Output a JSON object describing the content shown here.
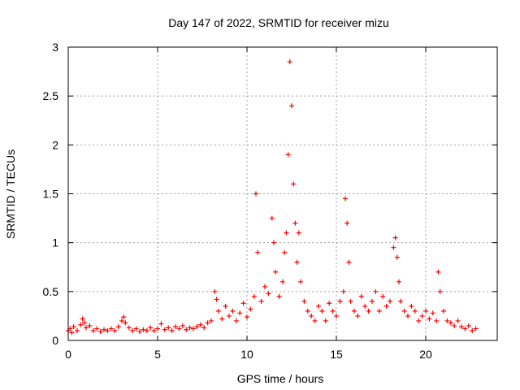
{
  "chart_data": {
    "type": "scatter",
    "title": "Day 147 of 2022, SRMTID for receiver mizu",
    "xlabel": "GPS time / hours",
    "ylabel": "SRMTID / TECUs",
    "xlim": [
      0,
      24
    ],
    "ylim": [
      0,
      3
    ],
    "grid": true,
    "marker": "+",
    "color": "#ff0000",
    "xticks": [
      0,
      5,
      10,
      15,
      20
    ],
    "yticks": [
      0,
      0.5,
      1,
      1.5,
      2,
      2.5,
      3
    ],
    "xtick_labels": [
      "0",
      "5",
      "10",
      "15",
      "20"
    ],
    "ytick_labels": [
      "0",
      "0.5",
      "1",
      "1.5",
      "2",
      "2.5",
      "3"
    ],
    "series": [
      {
        "name": "SRMTID",
        "x": [
          0.0,
          0.1,
          0.2,
          0.3,
          0.5,
          0.7,
          0.8,
          0.9,
          1.0,
          1.2,
          1.4,
          1.6,
          1.8,
          2.0,
          2.2,
          2.4,
          2.6,
          2.8,
          3.0,
          3.1,
          3.2,
          3.4,
          3.6,
          3.8,
          4.0,
          4.2,
          4.4,
          4.6,
          4.8,
          5.0,
          5.2,
          5.4,
          5.6,
          5.8,
          6.0,
          6.2,
          6.4,
          6.6,
          6.8,
          7.0,
          7.2,
          7.4,
          7.6,
          7.8,
          8.0,
          8.2,
          8.3,
          8.4,
          8.6,
          8.8,
          9.0,
          9.2,
          9.4,
          9.6,
          9.8,
          10.0,
          10.2,
          10.4,
          10.5,
          10.6,
          10.8,
          11.0,
          11.2,
          11.4,
          11.5,
          11.6,
          11.8,
          12.0,
          12.1,
          12.2,
          12.3,
          12.4,
          12.5,
          12.6,
          12.7,
          12.8,
          12.9,
          13.0,
          13.2,
          13.4,
          13.6,
          13.8,
          14.0,
          14.2,
          14.4,
          14.6,
          14.8,
          15.0,
          15.2,
          15.4,
          15.5,
          15.6,
          15.7,
          15.8,
          16.0,
          16.2,
          16.4,
          16.6,
          16.8,
          17.0,
          17.2,
          17.4,
          17.6,
          17.8,
          18.0,
          18.2,
          18.3,
          18.4,
          18.5,
          18.6,
          18.8,
          19.0,
          19.2,
          19.4,
          19.6,
          19.8,
          20.0,
          20.2,
          20.4,
          20.6,
          20.7,
          20.8,
          21.0,
          21.2,
          21.4,
          21.6,
          21.8,
          22.0,
          22.2,
          22.4,
          22.6,
          22.8
        ],
        "y": [
          0.1,
          0.12,
          0.08,
          0.14,
          0.1,
          0.16,
          0.22,
          0.18,
          0.13,
          0.15,
          0.1,
          0.12,
          0.09,
          0.11,
          0.1,
          0.12,
          0.1,
          0.14,
          0.2,
          0.24,
          0.18,
          0.13,
          0.1,
          0.12,
          0.09,
          0.11,
          0.1,
          0.13,
          0.1,
          0.12,
          0.17,
          0.11,
          0.13,
          0.1,
          0.14,
          0.12,
          0.15,
          0.11,
          0.13,
          0.12,
          0.14,
          0.16,
          0.13,
          0.18,
          0.2,
          0.5,
          0.42,
          0.3,
          0.22,
          0.35,
          0.25,
          0.3,
          0.2,
          0.28,
          0.38,
          0.24,
          0.32,
          0.45,
          1.5,
          0.9,
          0.4,
          0.55,
          0.48,
          1.25,
          1.0,
          0.7,
          0.45,
          0.6,
          0.9,
          1.1,
          1.9,
          2.85,
          2.4,
          1.6,
          1.2,
          0.8,
          1.1,
          0.6,
          0.4,
          0.3,
          0.25,
          0.2,
          0.35,
          0.3,
          0.2,
          0.38,
          0.3,
          0.25,
          0.4,
          0.5,
          1.45,
          1.2,
          0.8,
          0.4,
          0.3,
          0.25,
          0.45,
          0.35,
          0.3,
          0.4,
          0.5,
          0.3,
          0.45,
          0.35,
          0.4,
          0.95,
          1.05,
          0.85,
          0.6,
          0.4,
          0.3,
          0.25,
          0.35,
          0.3,
          0.2,
          0.25,
          0.3,
          0.22,
          0.28,
          0.2,
          0.7,
          0.5,
          0.3,
          0.2,
          0.18,
          0.15,
          0.2,
          0.14,
          0.12,
          0.15,
          0.1,
          0.12
        ]
      }
    ]
  }
}
